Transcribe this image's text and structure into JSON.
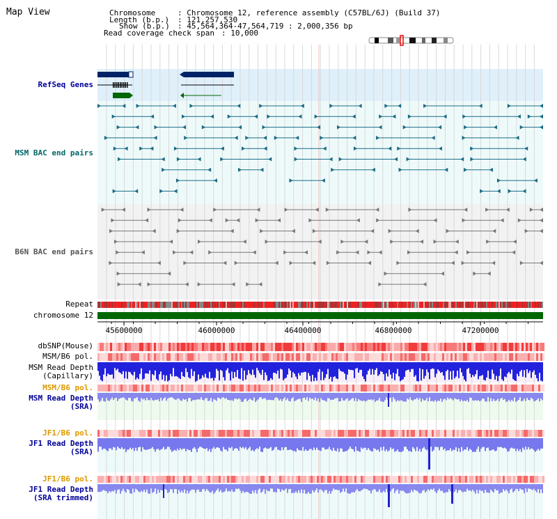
{
  "title": "Map View",
  "info": {
    "chromosome_key": "Chromosome",
    "chromosome_val": ": Chromosome 12, reference assembly (C57BL/6J) (Build 37)",
    "length_key": "Length (b.p.)",
    "length_val": ": 121,257,530",
    "show_key": "Show (b.p.)",
    "show_val": ": 45,564,364-47,564,719 : 2,000,356 bp",
    "span_key": "Read coverage check span",
    "span_val": ": 10,000"
  },
  "tracks": {
    "refseq": "RefSeq Genes",
    "msm_bac": "MSM BAC end pairs",
    "b6n_bac": "B6N BAC end pairs",
    "repeat": "Repeat",
    "chromosome": "chromosome 12",
    "dbsnp": "dbSNP(Mouse)",
    "msm_b6_pol_1": "MSM/B6 pol.",
    "msm_depth_cap_1": "MSM Read Depth",
    "msm_depth_cap_2": "(Capillary)",
    "msm_b6_pol_2": "MSM/B6 pol.",
    "msm_depth_sra_1": "MSM Read Depth",
    "msm_depth_sra_2": "(SRA)",
    "jf1_b6_pol_1": "JF1/B6 pol.",
    "jf1_depth_sra_1": "JF1 Read Depth",
    "jf1_depth_sra_2": "(SRA)",
    "jf1_b6_pol_2": "JF1/B6 pol.",
    "jf1_depth_trim_1": "JF1 Read Depth",
    "jf1_depth_trim_2": "(SRA trimmed)"
  },
  "axis": {
    "ticks": [
      "45600000",
      "46000000",
      "46400000",
      "46800000",
      "47200000"
    ]
  },
  "colors": {
    "refseq_label": "#000099",
    "msm_label": "#006666",
    "orange_label": "#dd9900",
    "gene_fill": "#002266",
    "chrom_bar": "#006600",
    "depth_blue": "#3333ee"
  }
}
